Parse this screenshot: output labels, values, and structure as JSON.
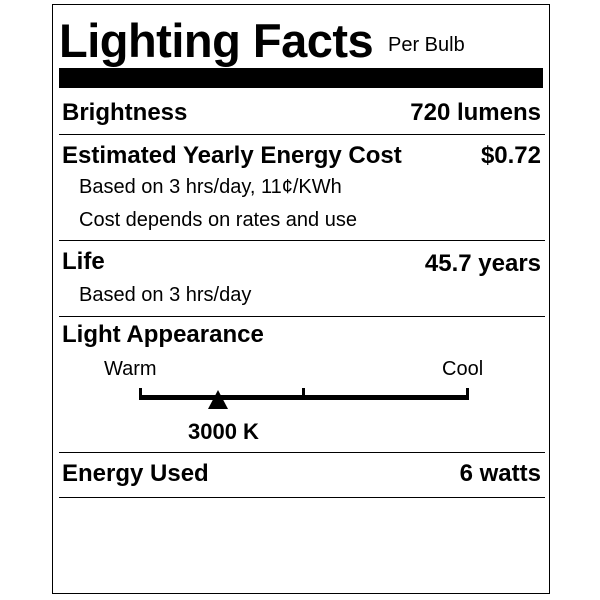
{
  "header": {
    "title": "Lighting Facts",
    "subtitle": "Per Bulb"
  },
  "brightness": {
    "label": "Brightness",
    "value": "720 lumens"
  },
  "energy_cost": {
    "label": "Estimated Yearly Energy Cost",
    "value": "$0.72",
    "notes": [
      "Based on 3 hrs/day, 11¢/KWh",
      "Cost depends on rates and use"
    ]
  },
  "life": {
    "label": "Life",
    "value": "45.7 years",
    "note": "Based on 3 hrs/day"
  },
  "light_appearance": {
    "label": "Light Appearance",
    "warm_label": "Warm",
    "cool_label": "Cool",
    "value": "3000 K",
    "marker_position_fraction": 0.24
  },
  "energy_used": {
    "label": "Energy Used",
    "value": "6 watts"
  }
}
